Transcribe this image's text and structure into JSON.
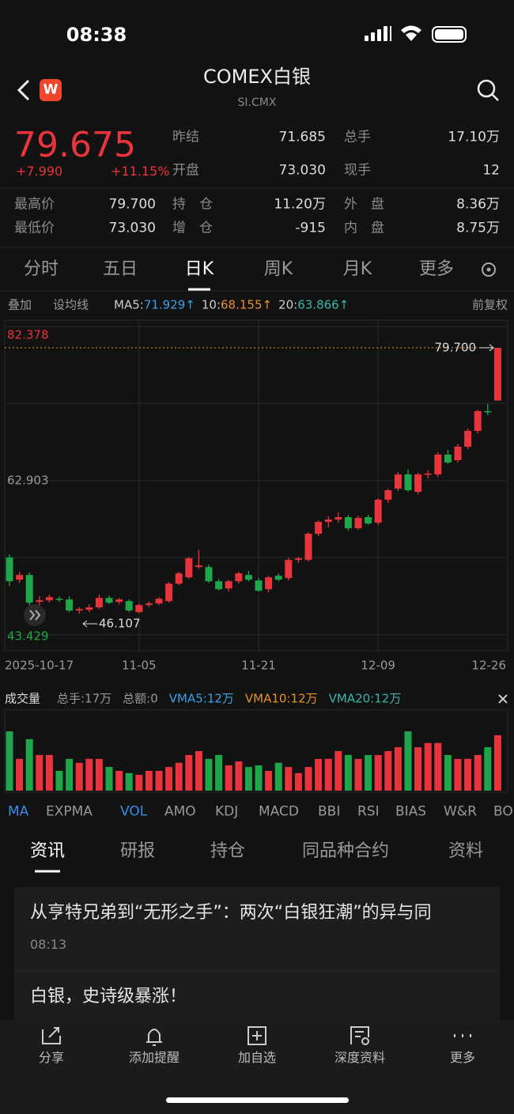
{
  "status_bar": {
    "time": "08:38"
  },
  "header": {
    "title": "COMEX白银",
    "subtitle": "SI.CMX",
    "badge": "W"
  },
  "quote": {
    "price": "79.675",
    "change": "+7.990",
    "change_pct": "+11.15%",
    "top": [
      {
        "label": "昨结",
        "value": "71.685"
      },
      {
        "label": "总手",
        "value": "17.10万"
      },
      {
        "label": "开盘",
        "value": "73.030"
      },
      {
        "label": "现手",
        "value": "12"
      }
    ],
    "stats": [
      [
        {
          "label": "最高价",
          "value": "79.700"
        },
        {
          "label": "持仓",
          "value": "11.20万"
        },
        {
          "label": "外盘",
          "value": "8.36万"
        }
      ],
      [
        {
          "label": "最低价",
          "value": "73.030"
        },
        {
          "label": "增仓",
          "value": "-915"
        },
        {
          "label": "内盘",
          "value": "8.75万"
        }
      ]
    ]
  },
  "period_tabs": [
    "分时",
    "五日",
    "日K",
    "周K",
    "月K",
    "更多"
  ],
  "ma_bar": {
    "left": [
      "叠加",
      "设均线"
    ],
    "ma": [
      {
        "label": "MA5:",
        "value": "71.929↑",
        "color": "#3aa0e8"
      },
      {
        "label": "10:",
        "value": "68.155↑",
        "color": "#e8902a"
      },
      {
        "label": "20:",
        "value": "63.866↑",
        "color": "#38b7a8"
      }
    ],
    "right": "前复权"
  },
  "chart": {
    "type": "candlestick",
    "up_color": "#e8343c",
    "down_color": "#1fa64a",
    "ylim": [
      43.429,
      82.378
    ],
    "yticks": [
      82.378,
      62.903,
      43.429
    ],
    "high_marker": {
      "value": 79.7,
      "label": "79.700"
    },
    "low_marker": 46.107,
    "categories": [
      "2025-10-17",
      null,
      null,
      null,
      null,
      null,
      null,
      null,
      null,
      null,
      null,
      null,
      null,
      "11-05",
      null,
      null,
      null,
      null,
      null,
      null,
      null,
      null,
      null,
      null,
      null,
      "11-21",
      null,
      null,
      null,
      null,
      null,
      null,
      null,
      null,
      null,
      null,
      null,
      "12-09",
      null,
      null,
      null,
      null,
      null,
      null,
      null,
      null,
      null,
      null,
      null,
      "12-26"
    ],
    "candles": [
      [
        53.2,
        53.6,
        49.6,
        50.2
      ],
      [
        50.4,
        51.4,
        50.0,
        51.0
      ],
      [
        51.0,
        51.3,
        47.2,
        47.5
      ],
      [
        47.6,
        48.3,
        47.2,
        47.8
      ],
      [
        47.8,
        48.5,
        47.5,
        48.2
      ],
      [
        48.0,
        48.3,
        47.6,
        47.9
      ],
      [
        47.9,
        48.3,
        46.3,
        46.5
      ],
      [
        46.5,
        46.9,
        46.107,
        46.7
      ],
      [
        46.6,
        47.3,
        46.3,
        46.9
      ],
      [
        46.9,
        48.5,
        46.7,
        48.1
      ],
      [
        48.1,
        48.4,
        47.3,
        47.5
      ],
      [
        47.6,
        48.1,
        47.3,
        47.9
      ],
      [
        47.7,
        47.9,
        46.3,
        46.5
      ],
      [
        46.3,
        47.4,
        46.2,
        47.2
      ],
      [
        47.2,
        47.7,
        46.9,
        47.4
      ],
      [
        47.4,
        48.2,
        47.2,
        48.0
      ],
      [
        47.7,
        50.1,
        47.5,
        49.9
      ],
      [
        49.9,
        51.4,
        49.7,
        51.2
      ],
      [
        50.7,
        53.3,
        50.5,
        53.1
      ],
      [
        52.0,
        54.2,
        51.8,
        52.2
      ],
      [
        52.0,
        52.3,
        50.0,
        50.2
      ],
      [
        50.2,
        50.5,
        49.0,
        49.2
      ],
      [
        49.3,
        50.4,
        48.9,
        50.2
      ],
      [
        50.2,
        51.4,
        49.9,
        51.2
      ],
      [
        51.0,
        51.5,
        50.2,
        50.4
      ],
      [
        50.3,
        50.6,
        48.9,
        49.0
      ],
      [
        49.2,
        50.9,
        48.8,
        50.7
      ],
      [
        50.9,
        51.2,
        50.2,
        50.4
      ],
      [
        50.6,
        53.2,
        50.3,
        52.9
      ],
      [
        52.9,
        53.3,
        52.5,
        53.1
      ],
      [
        52.9,
        56.4,
        52.7,
        56.2
      ],
      [
        56.2,
        57.9,
        55.9,
        57.7
      ],
      [
        57.7,
        58.4,
        57.0,
        58.0
      ],
      [
        58.0,
        58.9,
        57.6,
        58.3
      ],
      [
        58.3,
        58.6,
        56.6,
        56.9
      ],
      [
        56.9,
        58.5,
        56.7,
        58.2
      ],
      [
        58.3,
        58.6,
        57.3,
        57.5
      ],
      [
        57.6,
        60.7,
        57.3,
        60.5
      ],
      [
        60.5,
        61.9,
        60.1,
        61.7
      ],
      [
        61.9,
        64.0,
        61.6,
        63.7
      ],
      [
        63.7,
        64.3,
        61.5,
        61.7
      ],
      [
        61.5,
        63.9,
        61.2,
        63.7
      ],
      [
        63.7,
        64.2,
        63.2,
        63.8
      ],
      [
        63.7,
        66.5,
        63.4,
        66.2
      ],
      [
        66.2,
        66.8,
        65.0,
        65.2
      ],
      [
        65.5,
        67.5,
        65.2,
        67.2
      ],
      [
        67.2,
        69.5,
        66.9,
        69.2
      ],
      [
        69.2,
        71.9,
        68.9,
        71.7
      ],
      [
        71.7,
        72.6,
        71.2,
        71.685
      ],
      [
        73.03,
        79.7,
        73.03,
        79.675
      ]
    ]
  },
  "volume": {
    "header": "成交量",
    "items": [
      "总手:17万",
      "总额:0"
    ],
    "vma": [
      {
        "text": "VMA5:12万",
        "color": "#3aa0e8"
      },
      {
        "text": "VMA10:12万",
        "color": "#e8902a"
      },
      {
        "text": "VMA20:12万",
        "color": "#38b7a8"
      }
    ],
    "ylim": [
      0,
      24.4
    ],
    "values": [
      18.3,
      9.8,
      15.9,
      11.0,
      11.0,
      6.1,
      9.8,
      8.6,
      9.8,
      9.8,
      7.3,
      6.1,
      5.4,
      4.9,
      6.1,
      6.1,
      7.3,
      8.6,
      11.0,
      12.2,
      9.8,
      11.0,
      7.8,
      9.0,
      7.3,
      7.8,
      6.1,
      8.6,
      7.3,
      5.4,
      7.3,
      9.8,
      9.8,
      12.2,
      11.0,
      9.8,
      11.0,
      11.0,
      12.2,
      13.4,
      18.3,
      13.4,
      14.7,
      14.7,
      11.0,
      9.8,
      9.8,
      11.0,
      13.4,
      17.1
    ]
  },
  "indicator_tabs": [
    "MA",
    "EXPMA",
    "VOL",
    "AMO",
    "KDJ",
    "MACD",
    "BBI",
    "RSI",
    "BIAS",
    "W&R",
    "BOLL"
  ],
  "news_tabs": [
    "资讯",
    "研报",
    "持仓",
    "同品种合约",
    "资料"
  ],
  "news": [
    {
      "title": "从亨特兄弟到“无形之手”：两次“白银狂潮”的异与同",
      "time": "08:13"
    },
    {
      "title": "白银，史诗级暴涨！"
    }
  ],
  "bottom_bar": [
    "分享",
    "添加提醒",
    "加自选",
    "深度资料",
    "更多"
  ]
}
